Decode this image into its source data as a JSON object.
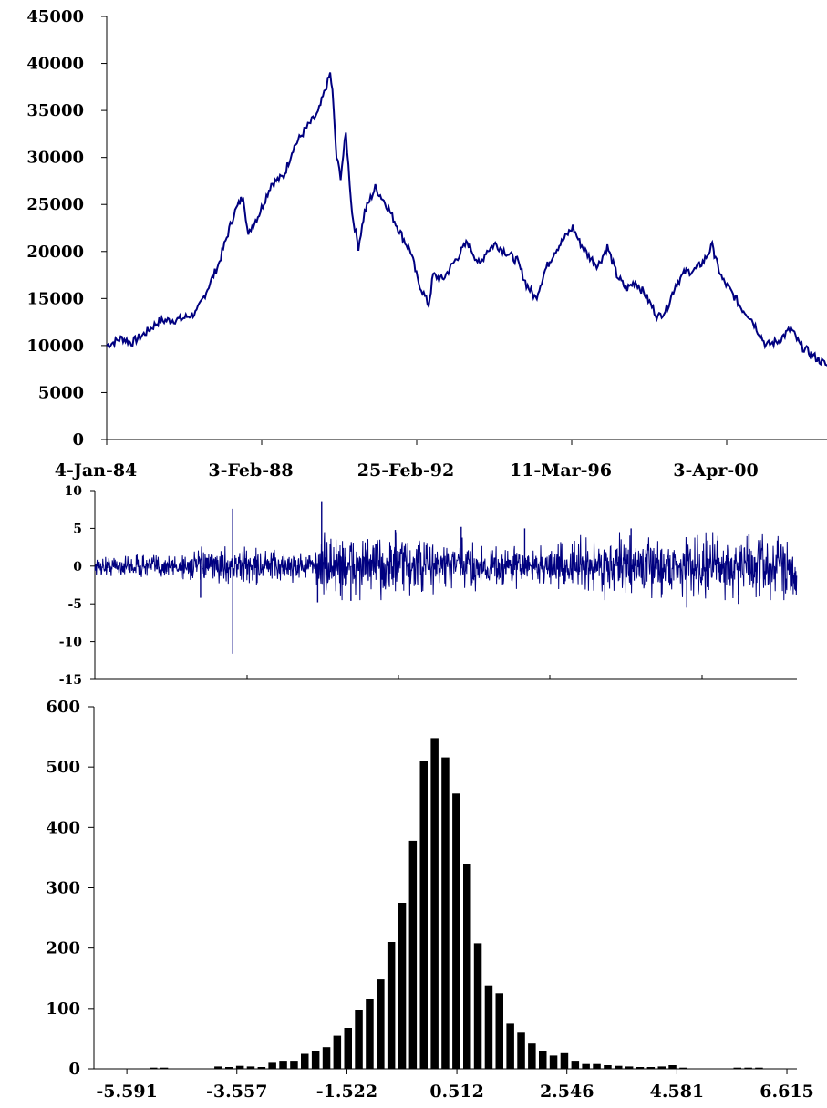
{
  "chart_data": [
    {
      "type": "line",
      "title": "",
      "xlabel": "",
      "ylabel": "",
      "ylim": [
        0,
        45000
      ],
      "y_ticks": [
        "0",
        "5000",
        "10000",
        "15000",
        "20000",
        "25000",
        "30000",
        "35000",
        "40000",
        "45000"
      ],
      "x_tick_labels": [
        "4-Jan-84",
        "3-Feb-88",
        "25-Feb-92",
        "11-Mar-96",
        "3-Apr-00"
      ],
      "x_range": [
        "1984-01-04",
        "2003-04-28"
      ],
      "line_color": "#000080",
      "grid": false,
      "series": [
        {
          "x": [
            "1984-01-04",
            "1984-06-01",
            "1984-09-01",
            "1985-01-01",
            "1985-06-01",
            "1986-01-01",
            "1986-06-01",
            "1987-01-01",
            "1987-06-01",
            "1987-09-01",
            "1987-10-20",
            "1987-11-15",
            "1988-02-03",
            "1988-06-01",
            "1988-10-01",
            "1989-01-01",
            "1989-05-01",
            "1989-09-01",
            "1989-12-29",
            "1990-01-20",
            "1990-03-01",
            "1990-04-10",
            "1990-06-01",
            "1990-08-01",
            "1990-10-01",
            "1990-12-01",
            "1991-03-15",
            "1991-07-01",
            "1991-10-01",
            "1992-01-01",
            "1992-02-25",
            "1992-05-01",
            "1992-08-18",
            "1992-10-01",
            "1993-01-01",
            "1993-04-01",
            "1993-09-01",
            "1994-01-01",
            "1994-03-01",
            "1994-06-01",
            "1995-01-01",
            "1995-04-01",
            "1995-07-01",
            "1995-10-01",
            "1996-01-01",
            "1996-03-11",
            "1996-06-28",
            "1996-09-01",
            "1996-12-01",
            "1997-03-01",
            "1997-06-01",
            "1997-09-01",
            "1997-12-01",
            "1998-03-01",
            "1998-06-01",
            "1998-10-09",
            "1999-01-01",
            "1999-04-01",
            "1999-07-01",
            "1999-10-01",
            "2000-01-01",
            "2000-04-03",
            "2000-04-12",
            "2000-07-01",
            "2000-10-01",
            "2001-01-01",
            "2001-04-01",
            "2001-09-01",
            "2002-01-01",
            "2002-05-01",
            "2002-08-01",
            "2002-10-01",
            "2003-01-01",
            "2003-04-28"
          ],
          "values": [
            10000,
            10800,
            10300,
            11200,
            12600,
            12800,
            13500,
            18600,
            24000,
            26000,
            21500,
            22500,
            24000,
            27200,
            28000,
            31000,
            33000,
            34700,
            38900,
            37000,
            30000,
            28000,
            32500,
            24000,
            20500,
            24200,
            26800,
            25000,
            23000,
            21000,
            20000,
            17000,
            14300,
            17500,
            17000,
            18500,
            21000,
            18500,
            20000,
            20800,
            19000,
            16500,
            15000,
            18000,
            20000,
            21000,
            22600,
            21000,
            19500,
            18500,
            20500,
            17500,
            16000,
            16800,
            15500,
            13000,
            13900,
            16500,
            17800,
            18000,
            19000,
            20800,
            19500,
            17000,
            15600,
            14000,
            13000,
            10000,
            10500,
            11800,
            10000,
            9500,
            8700,
            7800
          ]
        }
      ]
    },
    {
      "type": "line",
      "title": "",
      "xlabel": "",
      "ylabel": "",
      "ylim": [
        -15,
        10
      ],
      "y_ticks": [
        "10",
        "5",
        "0",
        "-5",
        "-10",
        "-15"
      ],
      "x_range": [
        "1984-01-04",
        "2003-04-28"
      ],
      "line_color": "#000080",
      "grid": false,
      "noise_profile": {
        "x": [
          "1984-01-04",
          "1987-09-01",
          "1988-03-01",
          "1990-01-01",
          "1990-06-01",
          "1991-06-01",
          "1992-01-01",
          "1993-06-01",
          "1995-01-01",
          "1996-06-01",
          "1997-06-01",
          "1999-01-01",
          "2000-06-01",
          "2001-06-01",
          "2003-04-28"
        ],
        "amplitude": [
          0.6,
          1.0,
          1.2,
          0.8,
          2.2,
          1.8,
          2.0,
          1.6,
          1.3,
          1.1,
          1.7,
          1.6,
          1.8,
          2.1,
          2.0
        ]
      },
      "extremes": [
        {
          "x": "1987-10-20",
          "y": 7.6
        },
        {
          "x": "1987-10-21",
          "y": -11.6
        },
        {
          "x": "1986-12-01",
          "y": -4.2
        },
        {
          "x": "1990-04-01",
          "y": 8.6
        },
        {
          "x": "1990-02-20",
          "y": -4.8
        },
        {
          "x": "1991-01-20",
          "y": -4.6
        },
        {
          "x": "1992-04-10",
          "y": 4.8
        },
        {
          "x": "1994-02-01",
          "y": 5.2
        },
        {
          "x": "1995-11-01",
          "y": 5.0
        },
        {
          "x": "1998-10-05",
          "y": 5.0
        },
        {
          "x": "2000-04-17",
          "y": -5.5
        },
        {
          "x": "2001-09-17",
          "y": -5.0
        },
        {
          "x": "2002-01-01",
          "y": 4.2
        }
      ]
    },
    {
      "type": "bar",
      "title": "",
      "xlabel": "",
      "ylabel": "",
      "ylim": [
        0,
        600
      ],
      "y_ticks": [
        "0",
        "100",
        "200",
        "300",
        "400",
        "500",
        "600"
      ],
      "x_tick_labels": [
        "-5.591",
        "-3.557",
        "-1.522",
        "0.512",
        "2.546",
        "4.581",
        "6.615"
      ],
      "x_range": [
        -5.591,
        6.615
      ],
      "bar_color": "#000000",
      "grid": false,
      "centers": [
        -5.1,
        -4.9,
        -3.9,
        -3.7,
        -3.5,
        -3.3,
        -3.1,
        -2.9,
        -2.7,
        -2.5,
        -2.3,
        -2.1,
        -1.9,
        -1.7,
        -1.5,
        -1.3,
        -1.1,
        -0.9,
        -0.7,
        -0.5,
        -0.3,
        -0.1,
        0.1,
        0.3,
        0.5,
        0.7,
        0.9,
        1.1,
        1.3,
        1.5,
        1.7,
        1.9,
        2.1,
        2.3,
        2.5,
        2.7,
        2.9,
        3.1,
        3.3,
        3.5,
        3.7,
        3.9,
        4.1,
        4.3,
        4.5,
        4.7,
        5.7,
        5.9,
        6.1
      ],
      "values": [
        2,
        2,
        4,
        3,
        5,
        4,
        3,
        10,
        12,
        12,
        25,
        30,
        36,
        55,
        68,
        98,
        115,
        148,
        210,
        275,
        378,
        510,
        548,
        516,
        456,
        340,
        208,
        138,
        125,
        75,
        60,
        42,
        30,
        22,
        26,
        12,
        8,
        8,
        6,
        5,
        4,
        3,
        3,
        4,
        6,
        2,
        2,
        2,
        2
      ]
    }
  ]
}
